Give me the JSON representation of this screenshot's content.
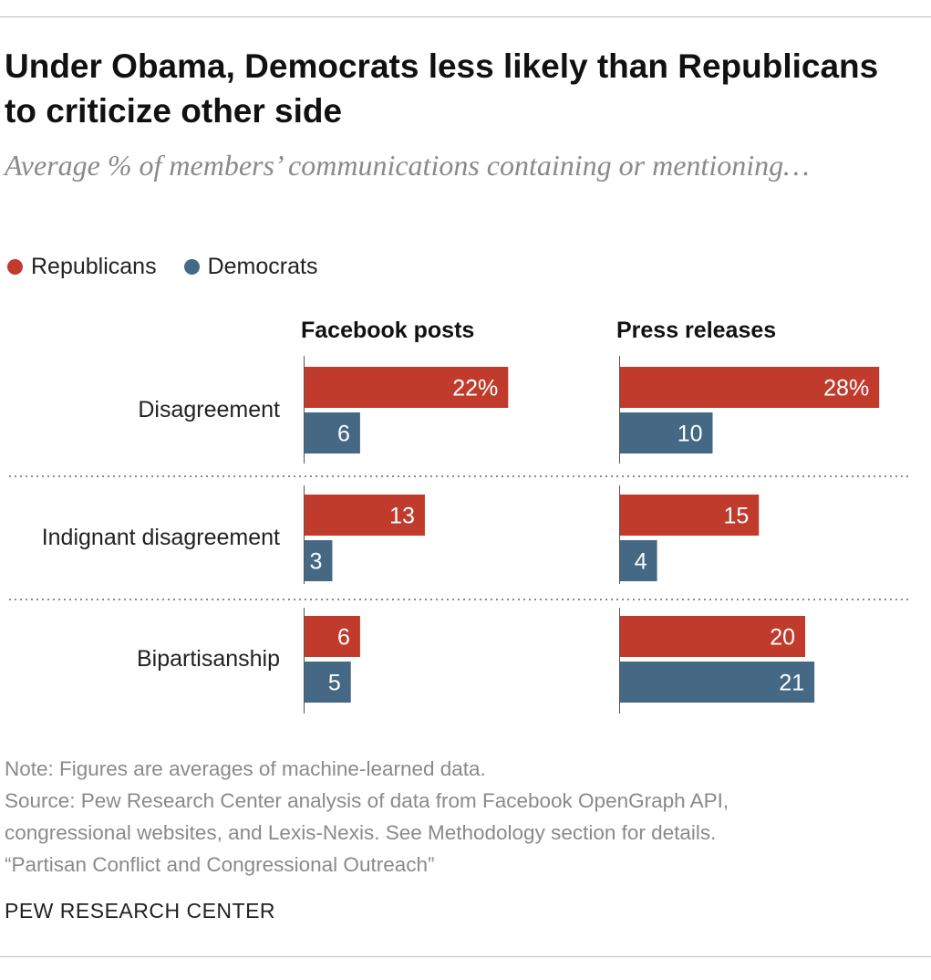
{
  "title": "Under Obama, Democrats less likely than Republicans to criticize other side",
  "subtitle": "Average % of members’ communications containing or mentioning…",
  "legend": [
    {
      "name": "Republicans",
      "color": "#c13b2c"
    },
    {
      "name": "Democrats",
      "color": "#456985"
    }
  ],
  "chart_data": {
    "type": "bar",
    "orientation": "horizontal",
    "unit": "%",
    "categories": [
      "Disagreement",
      "Indignant disagreement",
      "Bipartisanship"
    ],
    "panels": [
      {
        "title": "Facebook posts",
        "series": [
          {
            "name": "Republicans",
            "values": [
              22,
              13,
              6
            ],
            "labels": [
              "22%",
              "13",
              "6"
            ]
          },
          {
            "name": "Democrats",
            "values": [
              6,
              3,
              5
            ],
            "labels": [
              "6",
              "3",
              "5"
            ]
          }
        ]
      },
      {
        "title": "Press releases",
        "series": [
          {
            "name": "Republicans",
            "values": [
              28,
              15,
              20
            ],
            "labels": [
              "28%",
              "15",
              "20"
            ]
          },
          {
            "name": "Democrats",
            "values": [
              10,
              4,
              21
            ],
            "labels": [
              "10",
              "4",
              "21"
            ]
          }
        ]
      }
    ]
  },
  "notes": [
    "Note: Figures are averages of machine-learned data.",
    "Source: Pew Research Center analysis of data from Facebook OpenGraph API,",
    "congressional websites, and Lexis-Nexis. See Methodology section for details.",
    "“Partisan Conflict and Congressional Outreach”"
  ],
  "brand": "PEW RESEARCH CENTER"
}
